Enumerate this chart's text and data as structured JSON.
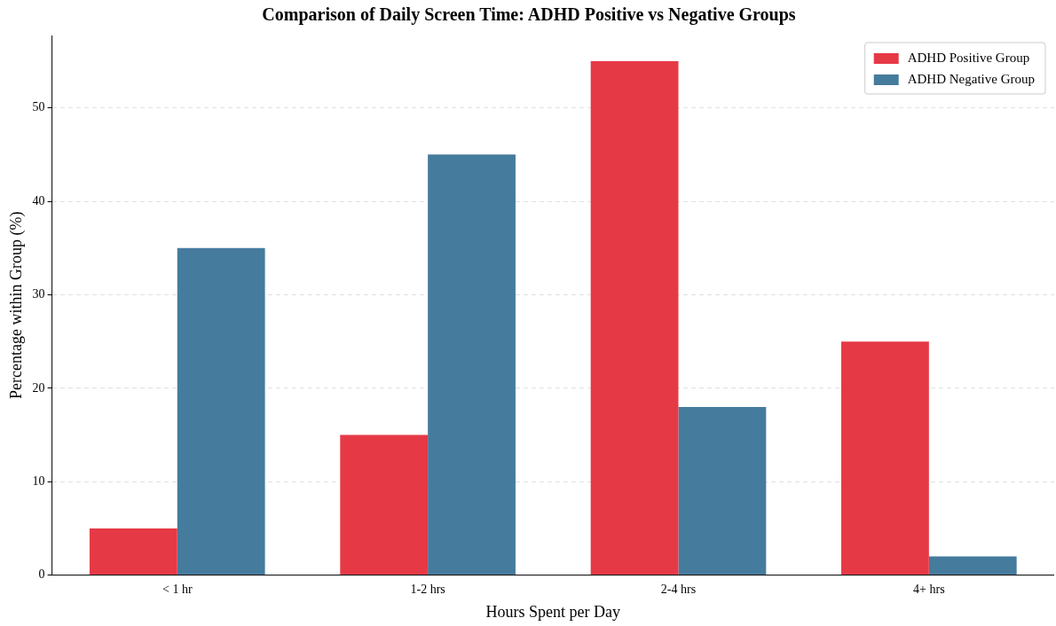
{
  "chart_data": {
    "type": "bar",
    "title": "Comparison of Daily Screen Time: ADHD Positive vs Negative Groups",
    "xlabel": "Hours Spent per Day",
    "ylabel": "Percentage within Group (%)",
    "categories": [
      "< 1 hr",
      "1-2 hrs",
      "2-4 hrs",
      "4+ hrs"
    ],
    "series": [
      {
        "name": "ADHD Positive Group",
        "color": "#e63946",
        "values": [
          5,
          15,
          55,
          25
        ]
      },
      {
        "name": "ADHD Negative Group",
        "color": "#457b9d",
        "values": [
          35,
          45,
          18,
          2
        ]
      }
    ],
    "ylim": [
      0,
      57.75
    ],
    "yticks": [
      0,
      10,
      20,
      30,
      40,
      50
    ],
    "grid": "y",
    "line_style": "dashed",
    "legend": "top right"
  }
}
